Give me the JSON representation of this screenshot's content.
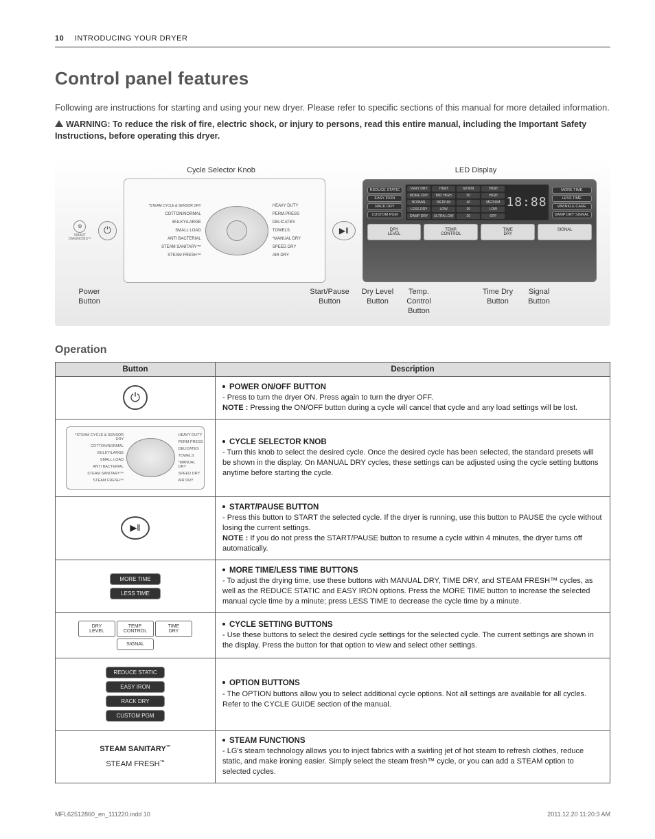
{
  "page": {
    "number": "10",
    "section": "INTRODUCING YOUR DRYER"
  },
  "title": "Control panel features",
  "intro": "Following are instructions for starting and using your new dryer. Please refer to specific sections of this manual for more detailed information.",
  "warning": "WARNING: To reduce the risk of fire, electric shock, or injury to persons, read this entire manual, including the Important Safety Instructions, before operating this dryer.",
  "diagram": {
    "top_labels": {
      "knob": "Cycle Selector Knob",
      "led": "LED Display"
    },
    "bottom_labels": {
      "power": "Power Button",
      "start": "Start/Pause\nButton",
      "dry": "Dry Level\nButton",
      "temp": "Temp.\nControl\nButton",
      "time": "Time Dry\nButton",
      "signal": "Signal\nButton"
    },
    "knob_left": [
      "*STEAM CYCLE & SENSOR DRY",
      "COTTON/NORMAL",
      "BULKY/LARGE",
      "SMALL LOAD",
      "ANTI BACTERIAL",
      "STEAM SANITARY™",
      "STEAM FRESH™"
    ],
    "knob_right": [
      "HEAVY DUTY",
      "PERM.PRESS",
      "DELICATES",
      "TOWELS",
      "*MANUAL DRY",
      "SPEED DRY",
      "AIR DRY"
    ],
    "led_left_opts": [
      "REDUCE STATIC",
      "EASY IRON",
      "RACK DRY",
      "CUSTOM PGM"
    ],
    "led_right_opts": [
      "MORE TIME",
      "LESS TIME",
      "WRINKLE CARE",
      "DAMP DRY SIGNAL"
    ],
    "led_digits": "18:88",
    "led_grid": [
      "VERY DRY",
      "HIGH",
      "60 MIN",
      "HIGH",
      "MORE DRY",
      "MID HIGH",
      "50",
      "HIGH",
      "NORMAL",
      "MEDIUM",
      "40",
      "MEDIUM",
      "LESS DRY",
      "LOW",
      "30",
      "LOW",
      "DAMP DRY",
      "ULTRA LOW",
      "20",
      "OFF"
    ],
    "led_bottom": [
      "DRY\nLEVEL",
      "TEMP.\nCONTROL",
      "TIME\nDRY",
      "SIGNAL"
    ]
  },
  "operation_heading": "Operation",
  "table": {
    "headers": {
      "button": "Button",
      "description": "Description"
    },
    "rows": [
      {
        "icon": "power",
        "title": "POWER ON/OFF BUTTON",
        "body": "- Press to turn the dryer ON. Press again to turn the dryer OFF.",
        "note": "NOTE : Pressing the ON/OFF button during a cycle will cancel that cycle and any load settings will be lost."
      },
      {
        "icon": "selector",
        "title": "CYCLE SELECTOR KNOB",
        "body": "- Turn this knob to select the desired cycle. Once the desired cycle has been selected, the standard presets will be shown in the display. On MANUAL DRY cycles, these settings can be adjusted using the cycle setting buttons anytime before starting the cycle."
      },
      {
        "icon": "start",
        "title": "START/PAUSE BUTTON",
        "body": "- Press this button to START the selected cycle. If the dryer is running, use this button to PAUSE the cycle without losing the current settings.",
        "note": "NOTE : If you do not press the START/PAUSE button to resume a cycle within 4 minutes, the dryer turns off automatically."
      },
      {
        "icon": "moretime",
        "title": "MORE TIME/LESS TIME BUTTONS",
        "body": "- To adjust the drying time, use these buttons with MANUAL DRY, TIME DRY, and STEAM FRESH™ cycles, as well as the REDUCE STATIC and EASY IRON options. Press the MORE TIME button to increase the selected manual cycle time by a minute; press LESS TIME to decrease the cycle time by a minute."
      },
      {
        "icon": "cyclesetting",
        "title": "CYCLE SETTING BUTTONS",
        "body": "- Use these buttons to select the desired cycle settings for the selected cycle. The current settings are shown in the display. Press the button for that option to view and select other settings."
      },
      {
        "icon": "option",
        "title": "OPTION BUTTONS",
        "body": "- The OPTION buttons allow you to select additional cycle options. Not all settings are available for all cycles. Refer to the CYCLE GUIDE section of the manual."
      },
      {
        "icon": "steam",
        "title": "STEAM FUNCTIONS",
        "body": "- LG's steam technology allows you to inject fabrics with a swirling jet of hot steam to refresh clothes, reduce static, and make ironing easier. Simply select the steam fresh™ cycle, or you can add a STEAM option to selected cycles."
      }
    ],
    "moretime_labels": [
      "MORE TIME",
      "LESS TIME"
    ],
    "cyclesetting_labels": [
      "DRY\nLEVEL",
      "TEMP.\nCONTROL",
      "TIME\nDRY",
      "SIGNAL"
    ],
    "option_labels": [
      "REDUCE STATIC",
      "EASY IRON",
      "RACK DRY",
      "CUSTOM PGM"
    ],
    "steam_labels": [
      "STEAM SANITARY",
      "STEAM FRESH"
    ]
  },
  "footer": {
    "left": "MFL62512860_en_111220.indd   10",
    "right": "2011.12.20   11:20:3 AM"
  }
}
